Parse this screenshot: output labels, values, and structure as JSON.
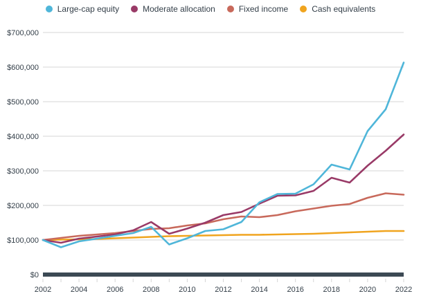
{
  "legend": {
    "items": [
      {
        "label": "Large-cap equity",
        "color": "#4FB6D9"
      },
      {
        "label": "Moderate allocation",
        "color": "#993A67"
      },
      {
        "label": "Fixed income",
        "color": "#C8695B"
      },
      {
        "label": "Cash equivalents",
        "color": "#F0A41E"
      }
    ]
  },
  "axis_style": {
    "text_color": "#333E48",
    "grid_color": "#D5D5D5",
    "tick_color": "#D5D5D5",
    "baseline_color": "#3C4954"
  },
  "chart_data": {
    "type": "line",
    "title": "",
    "xlabel": "",
    "ylabel": "",
    "grid": "horizontal",
    "legend_position": "top",
    "x": [
      2002,
      2003,
      2004,
      2005,
      2006,
      2007,
      2008,
      2009,
      2010,
      2011,
      2012,
      2013,
      2014,
      2015,
      2016,
      2017,
      2018,
      2019,
      2020,
      2021,
      2022
    ],
    "x_tick_labels": [
      "2002",
      "2004",
      "2006",
      "2008",
      "2010",
      "2012",
      "2014",
      "2016",
      "2018",
      "2020",
      "2022"
    ],
    "ylim": [
      0,
      700000
    ],
    "y_ticks": [
      {
        "value": 0,
        "label": "$0"
      },
      {
        "value": 100000,
        "label": "$100,000"
      },
      {
        "value": 200000,
        "label": "$200,000"
      },
      {
        "value": 300000,
        "label": "$300,000"
      },
      {
        "value": 400000,
        "label": "$400,000"
      },
      {
        "value": 500000,
        "label": "$500,000"
      },
      {
        "value": 600000,
        "label": "$600,000"
      },
      {
        "value": 700000,
        "label": "$700,000"
      }
    ],
    "series": [
      {
        "name": "Large-cap equity",
        "color": "#4FB6D9",
        "values": [
          100000,
          79000,
          96000,
          104000,
          112000,
          120000,
          138000,
          87000,
          105000,
          126000,
          131000,
          152000,
          209000,
          233000,
          234000,
          261000,
          318000,
          304000,
          415000,
          478000,
          613000
        ]
      },
      {
        "name": "Moderate allocation",
        "color": "#993A67",
        "values": [
          100000,
          92000,
          104000,
          110000,
          116000,
          128000,
          152000,
          118000,
          133000,
          150000,
          172000,
          181000,
          205000,
          228000,
          229000,
          242000,
          280000,
          266000,
          315000,
          358000,
          405000
        ]
      },
      {
        "name": "Fixed income",
        "color": "#C8695B",
        "values": [
          100000,
          106000,
          112000,
          116000,
          120000,
          126000,
          132000,
          134000,
          142000,
          148000,
          160000,
          168000,
          166000,
          172000,
          183000,
          191000,
          199000,
          204000,
          222000,
          235000,
          231000
        ]
      },
      {
        "name": "Cash equivalents",
        "color": "#F0A41E",
        "values": [
          100000,
          101000,
          102000,
          103000,
          105000,
          107000,
          109000,
          111000,
          112000,
          113000,
          114000,
          115000,
          115000,
          116000,
          117000,
          118000,
          120000,
          122000,
          124000,
          126000,
          126000
        ]
      }
    ]
  },
  "plot_geometry_note": "lines start at $100,000 in 2002"
}
